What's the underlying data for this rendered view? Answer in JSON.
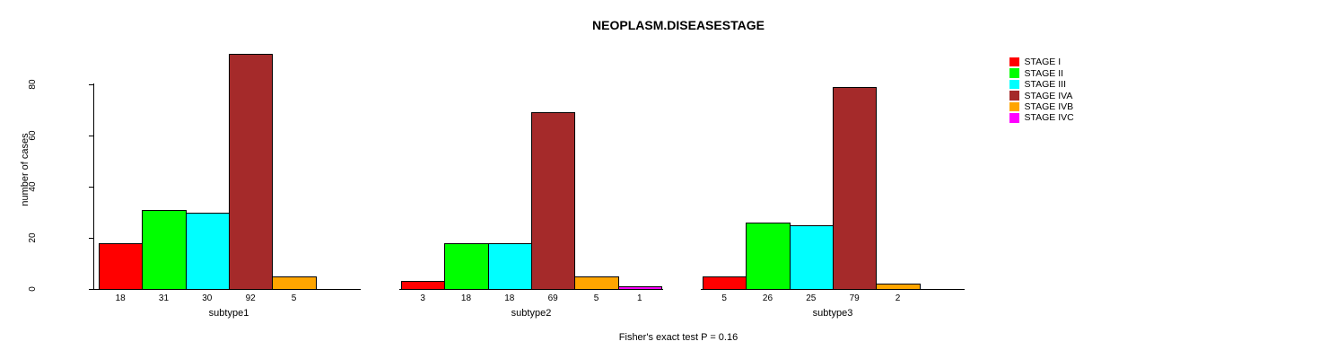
{
  "chart_data": {
    "type": "bar",
    "title": "NEOPLASM.DISEASESTAGE",
    "ylabel": "number of cases",
    "annotation": "Fisher's exact test P = 0.16",
    "legend_position": "right-outside",
    "grid": false,
    "ylim": [
      0,
      93
    ],
    "yticks": [
      0,
      20,
      40,
      60,
      80
    ],
    "series": [
      {
        "name": "STAGE I",
        "color": "#ff0000"
      },
      {
        "name": "STAGE II",
        "color": "#00ff00"
      },
      {
        "name": "STAGE III",
        "color": "#00ffff"
      },
      {
        "name": "STAGE IVA",
        "color": "#a52a2a"
      },
      {
        "name": "STAGE IVB",
        "color": "#ffa500"
      },
      {
        "name": "STAGE IVC",
        "color": "#ff00ff"
      }
    ],
    "groups": [
      {
        "label": "subtype1",
        "values": [
          18,
          31,
          30,
          92,
          5,
          0
        ],
        "value_labels": [
          "18",
          "31",
          "30",
          "92",
          "5",
          ""
        ]
      },
      {
        "label": "subtype2",
        "values": [
          3,
          18,
          18,
          69,
          5,
          1
        ],
        "value_labels": [
          "3",
          "18",
          "18",
          "69",
          "5",
          "1"
        ]
      },
      {
        "label": "subtype3",
        "values": [
          5,
          26,
          25,
          79,
          2,
          0
        ],
        "value_labels": [
          "5",
          "26",
          "25",
          "79",
          "2",
          ""
        ]
      }
    ]
  }
}
